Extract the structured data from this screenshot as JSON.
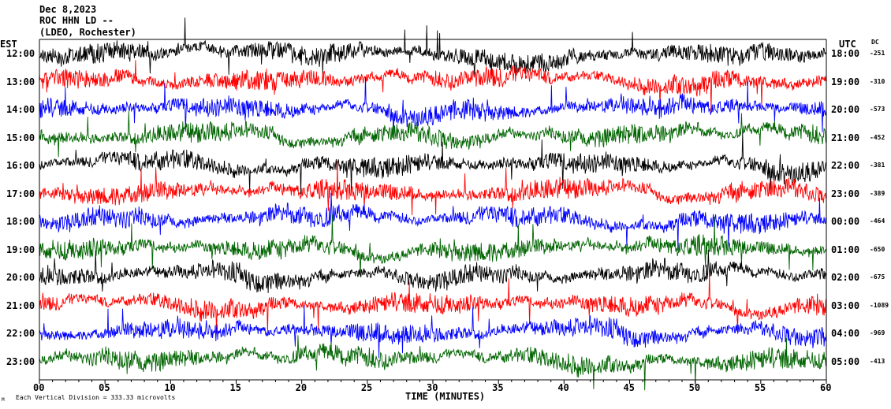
{
  "header": {
    "date": "Dec 8,2023",
    "station": "ROC HHN LD --",
    "network": "(LDEO, Rochester)"
  },
  "left_axis_label": "EST",
  "right_axis_label": "UTC",
  "dc_label": "DC",
  "xlabel": "TIME (MINUTES)",
  "scale_note": "Each Vertical Division =  333.33 microvolts",
  "corner_mark": "M",
  "colors": {
    "cycle": [
      "#000000",
      "#ff0000",
      "#0000ff",
      "#006400"
    ]
  },
  "chart_data": {
    "type": "line",
    "xlim": [
      0,
      60
    ],
    "x_ticks": [
      "00",
      "05",
      "10",
      "15",
      "20",
      "25",
      "30",
      "35",
      "40",
      "45",
      "50",
      "55",
      "60"
    ],
    "rows": [
      {
        "est": "12:00",
        "utc": "18:00",
        "dc": "-251"
      },
      {
        "est": "13:00",
        "utc": "19:00",
        "dc": "-310"
      },
      {
        "est": "14:00",
        "utc": "20:00",
        "dc": "-573"
      },
      {
        "est": "15:00",
        "utc": "21:00",
        "dc": "-452"
      },
      {
        "est": "16:00",
        "utc": "22:00",
        "dc": "-381"
      },
      {
        "est": "17:00",
        "utc": "23:00",
        "dc": "-389"
      },
      {
        "est": "18:00",
        "utc": "00:00",
        "dc": "-464"
      },
      {
        "est": "19:00",
        "utc": "01:00",
        "dc": "-650"
      },
      {
        "est": "20:00",
        "utc": "02:00",
        "dc": "-675"
      },
      {
        "est": "21:00",
        "utc": "03:00",
        "dc": "-1089"
      },
      {
        "est": "22:00",
        "utc": "04:00",
        "dc": "-969"
      },
      {
        "est": "23:00",
        "utc": "05:00",
        "dc": "-413"
      }
    ]
  }
}
